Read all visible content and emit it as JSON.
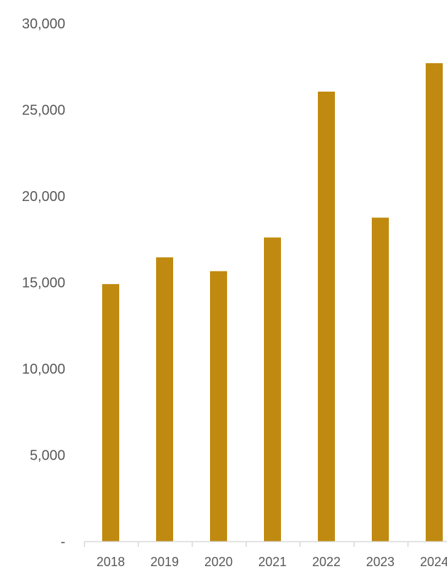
{
  "chart_data": {
    "type": "bar",
    "categories": [
      "2018",
      "2019",
      "2020",
      "2021",
      "2022",
      "2023",
      "2024"
    ],
    "values": [
      14900,
      16450,
      15650,
      17600,
      26050,
      18750,
      27700
    ],
    "ylim": [
      0,
      30000
    ],
    "y_ticks": [
      {
        "value": 0,
        "label": "-"
      },
      {
        "value": 5000,
        "label": "5,000"
      },
      {
        "value": 10000,
        "label": "10,000"
      },
      {
        "value": 15000,
        "label": "15,000"
      },
      {
        "value": 20000,
        "label": "20,000"
      },
      {
        "value": 25000,
        "label": "25,000"
      },
      {
        "value": 30000,
        "label": "30,000"
      }
    ],
    "grid": false,
    "legend": "none",
    "bar_color": "#C08A10",
    "axis_color": "#D9D9D9",
    "label_color": "#595959"
  }
}
